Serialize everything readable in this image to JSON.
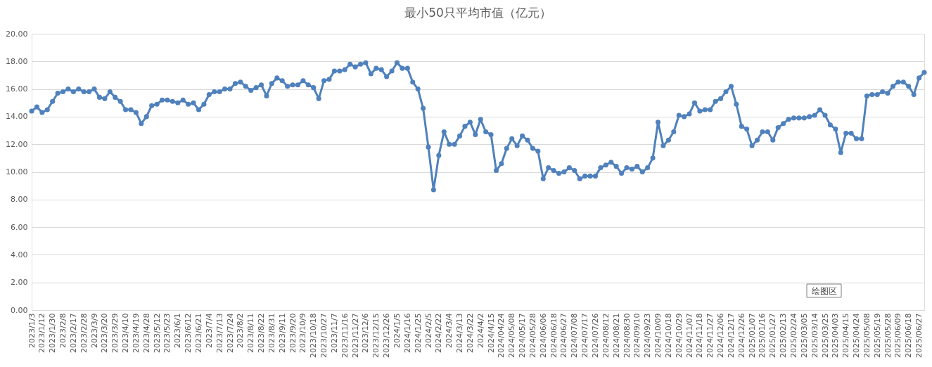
{
  "chart_data": {
    "type": "line",
    "title": "最小50只平均市值（亿元）",
    "categories": [
      "2023/1/3",
      null,
      "2023/1/12",
      null,
      "2023/1/30",
      null,
      "2023/2/8",
      null,
      "2023/2/17",
      null,
      "2023/2/28",
      null,
      "2023/3/9",
      null,
      "2023/3/20",
      null,
      "2023/3/29",
      null,
      "2023/4/10",
      null,
      "2023/4/19",
      null,
      "2023/4/28",
      null,
      "2023/5/12",
      null,
      "2023/5/23",
      null,
      "2023/6/1",
      null,
      "2023/6/12",
      null,
      "2023/6/21",
      null,
      "2023/7/4",
      null,
      "2023/7/13",
      null,
      "2023/7/24",
      null,
      "2023/8/2",
      null,
      "2023/8/11",
      null,
      "2023/8/22",
      null,
      "2023/8/31",
      null,
      "2023/9/11",
      null,
      "2023/9/20",
      null,
      "2023/10/9",
      null,
      "2023/10/18",
      null,
      "2023/10/27",
      null,
      "2023/11/7",
      null,
      "2023/11/16",
      null,
      "2023/11/27",
      null,
      "2023/12/6",
      null,
      "2023/12/15",
      null,
      "2023/12/26",
      null,
      "2024/1/5",
      null,
      "2024/1/16",
      null,
      "2024/1/25",
      null,
      "2024/2/5",
      null,
      "2024/2/22",
      null,
      "2024/3/4",
      null,
      "2024/3/13",
      null,
      "2024/3/22",
      null,
      "2024/4/2",
      null,
      "2024/4/15",
      null,
      "2024/04/24",
      null,
      "2024/05/08",
      null,
      "2024/05/17",
      null,
      "2024/05/28",
      null,
      "2024/06/06",
      null,
      "2024/06/18",
      null,
      "2024/06/27",
      null,
      "2024/07/08",
      null,
      "2024/07/17",
      null,
      "2024/07/26",
      null,
      "2024/08/12",
      null,
      "2024/08/21",
      null,
      "2024/08/30",
      null,
      "2024/09/10",
      null,
      "2024/09/23",
      null,
      "2024/10/09",
      null,
      "2024/10/18",
      null,
      "2024/10/29",
      null,
      "2024/11/07",
      null,
      "2024/11/18",
      null,
      "2024/11/27",
      null,
      "2024/12/06",
      null,
      "2024/12/17",
      null,
      "2024/12/26",
      null,
      "2025/01/07",
      null,
      "2025/01/16",
      null,
      "2025/01/27",
      null,
      "2025/02/13",
      null,
      "2025/02/24",
      null,
      "2025/03/05",
      null,
      "2025/03/14",
      null,
      "2025/03/25",
      null,
      "2025/04/03",
      null,
      "2025/04/15",
      null,
      "2025/04/24",
      null,
      "2025/05/08",
      null,
      "2025/05/19",
      null,
      "2025/05/28",
      null,
      "2025/06/09",
      null,
      "2025/06/18",
      null,
      "2025/06/27",
      null
    ],
    "series": [
      {
        "color": "#4f81bd",
        "values": [
          14.4,
          14.7,
          14.3,
          14.5,
          15.1,
          15.7,
          15.8,
          16.0,
          15.8,
          16.0,
          15.8,
          15.8,
          16.0,
          15.4,
          15.3,
          15.8,
          15.4,
          15.1,
          14.5,
          14.5,
          14.3,
          13.5,
          14.0,
          14.8,
          14.9,
          15.2,
          15.2,
          15.1,
          15.0,
          15.2,
          14.9,
          15.0,
          14.5,
          14.9,
          15.6,
          15.8,
          15.8,
          16.0,
          16.0,
          16.4,
          16.5,
          16.2,
          15.9,
          16.1,
          16.3,
          15.5,
          16.4,
          16.8,
          16.6,
          16.2,
          16.3,
          16.3,
          16.6,
          16.3,
          16.1,
          15.3,
          16.6,
          16.7,
          17.3,
          17.3,
          17.4,
          17.8,
          17.6,
          17.8,
          17.9,
          17.1,
          17.5,
          17.4,
          16.9,
          17.3,
          17.9,
          17.5,
          17.5,
          16.5,
          16.0,
          14.6,
          11.8,
          8.7,
          11.2,
          12.9,
          12.0,
          12.0,
          12.6,
          13.3,
          13.6,
          12.7,
          13.8,
          12.9,
          12.7,
          10.1,
          10.6,
          11.7,
          12.4,
          11.9,
          12.6,
          12.3,
          11.7,
          11.5,
          9.5,
          10.3,
          10.1,
          9.9,
          10.0,
          10.3,
          10.1,
          9.5,
          9.7,
          9.7,
          9.7,
          10.3,
          10.5,
          10.7,
          10.4,
          9.9,
          10.3,
          10.2,
          10.4,
          10.0,
          10.3,
          11.0,
          13.6,
          11.9,
          12.3,
          12.9,
          14.1,
          14.0,
          14.2,
          15.0,
          14.4,
          14.5,
          14.5,
          15.1,
          15.3,
          15.8,
          16.2,
          14.9,
          13.3,
          13.1,
          11.9,
          12.3,
          12.9,
          12.9,
          12.3,
          13.2,
          13.5,
          13.8,
          13.9,
          13.9,
          13.9,
          14.0,
          14.1,
          14.5,
          14.1,
          13.4,
          13.1,
          11.4,
          12.8,
          12.8,
          12.4,
          12.4,
          15.5,
          15.6,
          15.6,
          15.8,
          15.7,
          16.2,
          16.5,
          16.5,
          16.2,
          15.6,
          16.8,
          17.2
        ]
      }
    ],
    "ylim": [
      0,
      20
    ],
    "yticks": [
      {
        "value": 0,
        "label": "0.00"
      },
      {
        "value": 2,
        "label": "2.00"
      },
      {
        "value": 4,
        "label": "4.00"
      },
      {
        "value": 6,
        "label": "6.00"
      },
      {
        "value": 8,
        "label": "8.00"
      },
      {
        "value": 10,
        "label": "10.00"
      },
      {
        "value": 12,
        "label": "12.00"
      },
      {
        "value": 14,
        "label": "14.00"
      },
      {
        "value": 16,
        "label": "16.00"
      },
      {
        "value": 18,
        "label": "18.00"
      },
      {
        "value": 20,
        "label": "20.00"
      }
    ],
    "grid": "y",
    "marker": "circle",
    "line_style": "solid",
    "annotations": [
      "绘图区"
    ]
  }
}
